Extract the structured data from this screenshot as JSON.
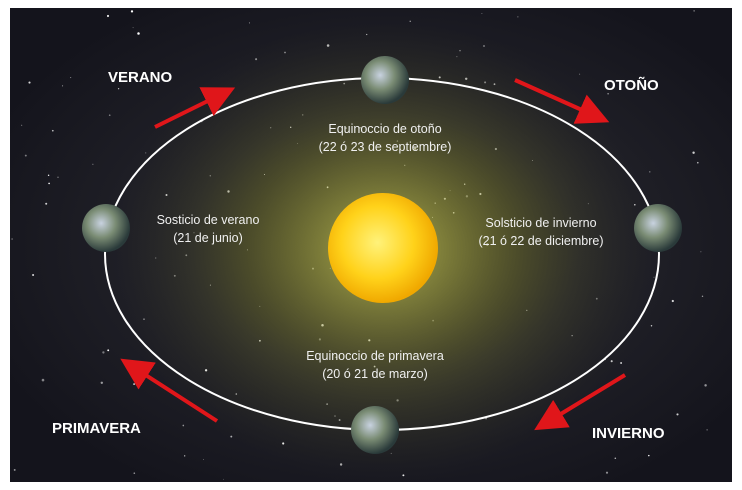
{
  "seasons": {
    "summer": "VERANO",
    "autumn": "OTOÑO",
    "spring": "PRIMAVERA",
    "winter": "INVIERNO"
  },
  "positions": [
    {
      "label": "Equinoccio de otoño",
      "date": "(22 ó 23 de septiembre)"
    },
    {
      "label": "Solsticio de invierno",
      "date": "(21 ó 22 de diciembre)"
    },
    {
      "label": "Equinoccio de primavera",
      "date": "(20 ó 21 de marzo)"
    },
    {
      "label": "Sosticio de verano",
      "date": "(21 de junio)"
    }
  ]
}
